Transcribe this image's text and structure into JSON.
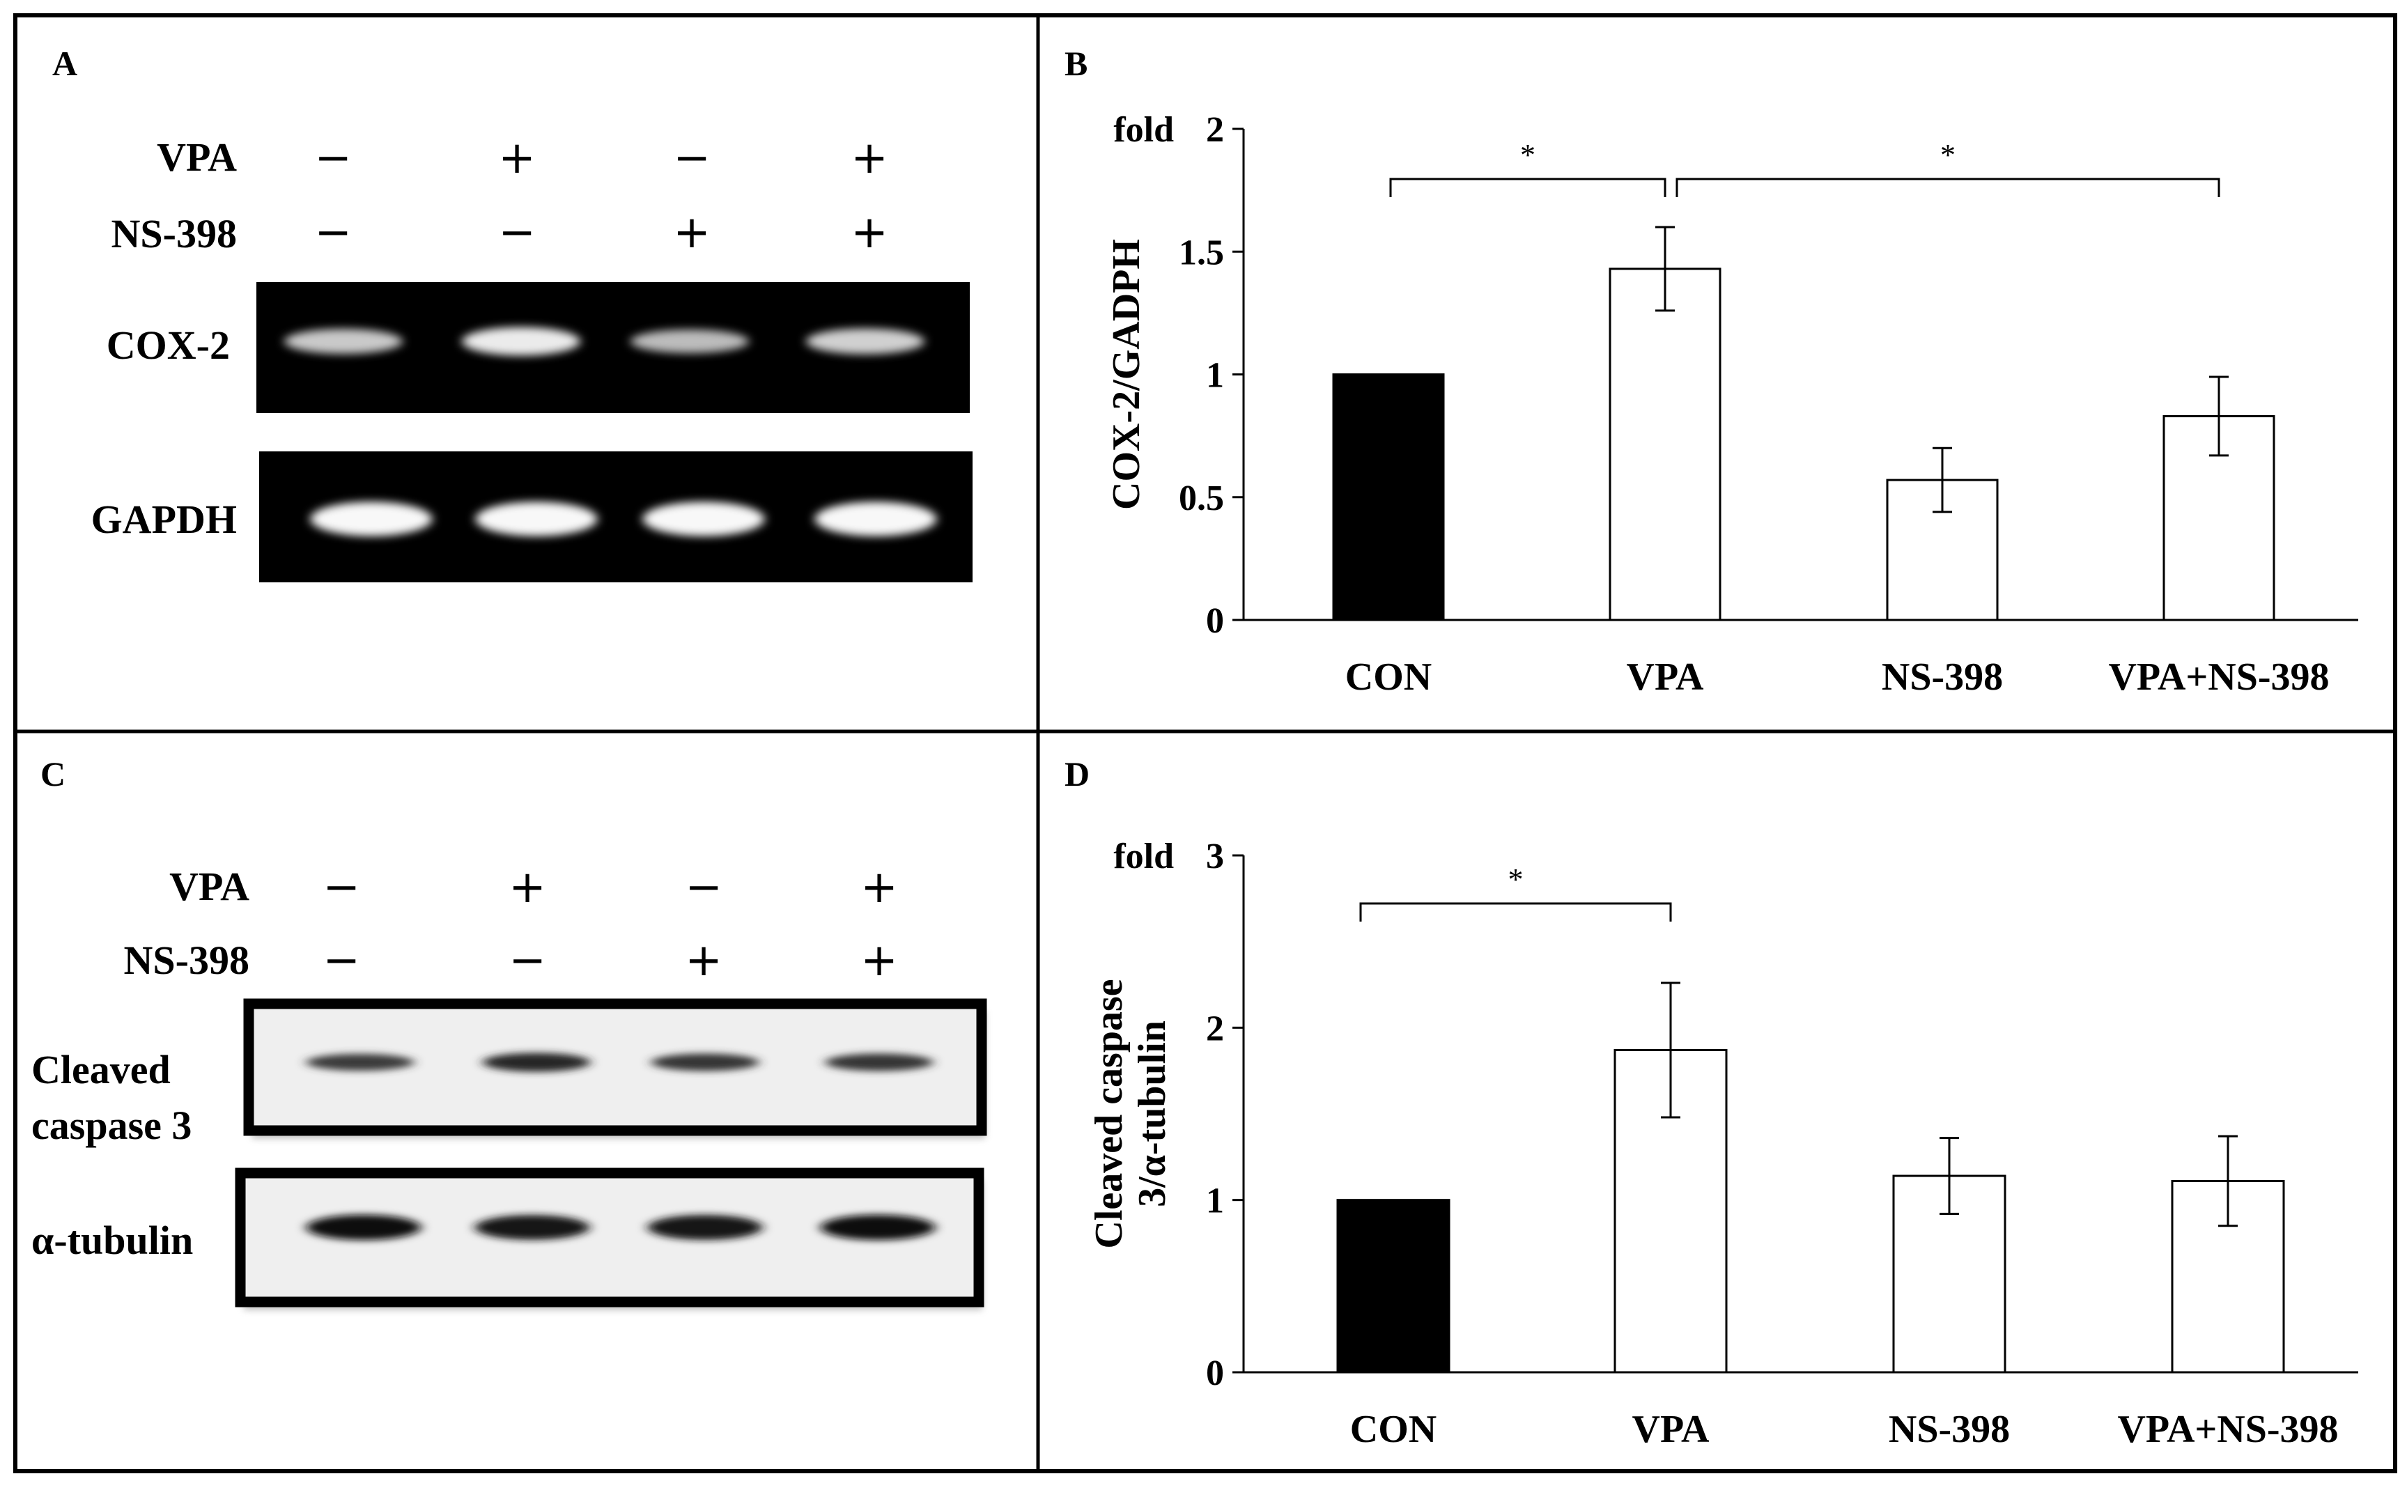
{
  "figure": {
    "panelA": {
      "letter": "A",
      "row_labels": [
        "VPA",
        "NS-398"
      ],
      "vpa_signs": [
        "−",
        "+",
        "−",
        "+"
      ],
      "ns398_signs": [
        "−",
        "−",
        "+",
        "+"
      ],
      "blots": [
        {
          "label": "COX-2",
          "band_intensity": [
            0.6,
            0.85,
            0.5,
            0.65
          ]
        },
        {
          "label": "GAPDH",
          "band_intensity": [
            0.95,
            0.95,
            0.95,
            0.95
          ]
        }
      ]
    },
    "panelC": {
      "letter": "C",
      "row_labels": [
        "VPA",
        "NS-398"
      ],
      "vpa_signs": [
        "−",
        "+",
        "−",
        "+"
      ],
      "ns398_signs": [
        "−",
        "−",
        "+",
        "+"
      ],
      "blots": [
        {
          "label_lines": [
            "Cleaved",
            "caspase 3"
          ],
          "band_intensity": [
            0.55,
            0.75,
            0.6,
            0.6
          ]
        },
        {
          "label_lines": [
            "α-tubulin"
          ],
          "band_intensity": [
            0.95,
            0.9,
            0.92,
            0.95
          ]
        }
      ]
    }
  },
  "chart_data": [
    {
      "type": "bar",
      "panel": "B",
      "categories": [
        "CON",
        "VPA",
        "NS-398",
        "VPA+NS-398"
      ],
      "values": [
        1.0,
        1.43,
        0.57,
        0.83
      ],
      "errors": [
        0,
        0.17,
        0.13,
        0.16
      ],
      "fills": [
        "#000000",
        "#ffffff",
        "#ffffff",
        "#ffffff"
      ],
      "ylabel": "COX-2/GADPH",
      "unit_label": "fold",
      "ylim": [
        0,
        2
      ],
      "yticks": [
        0,
        0.5,
        1,
        1.5,
        2
      ],
      "ytick_labels": [
        "0",
        "0.5",
        "1",
        "1.5",
        "2"
      ],
      "significance": [
        {
          "from": 0,
          "to": 1,
          "label": "*"
        },
        {
          "from": 1,
          "to": 3,
          "label": "*"
        }
      ]
    },
    {
      "type": "bar",
      "panel": "D",
      "categories": [
        "CON",
        "VPA",
        "NS-398",
        "VPA+NS-398"
      ],
      "values": [
        1.0,
        1.87,
        1.14,
        1.11
      ],
      "errors": [
        0,
        0.39,
        0.22,
        0.26
      ],
      "fills": [
        "#000000",
        "#ffffff",
        "#ffffff",
        "#ffffff"
      ],
      "ylabel_lines": [
        "Cleaved caspase",
        "3/α-tubulin"
      ],
      "unit_label": "fold",
      "ylim": [
        0,
        3
      ],
      "yticks": [
        0,
        1,
        2,
        3
      ],
      "ytick_labels": [
        "0",
        "1",
        "2",
        "3"
      ],
      "significance": [
        {
          "from": 0,
          "to": 1,
          "label": "*"
        }
      ]
    }
  ]
}
